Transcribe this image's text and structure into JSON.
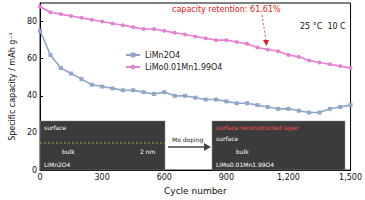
{
  "chart_data": {
    "type": "line",
    "x_label": "Cycle number",
    "y_label": "Specific capacity / mAh g⁻¹",
    "x": [
      0,
      50,
      100,
      150,
      200,
      250,
      300,
      350,
      400,
      450,
      500,
      550,
      600,
      650,
      700,
      750,
      800,
      850,
      900,
      950,
      1000,
      1050,
      1100,
      1150,
      1200,
      1250,
      1300,
      1350,
      1400,
      1450,
      1500
    ],
    "series": [
      {
        "name": "LiMn2O4",
        "color": "#8fa6c9",
        "marker": "square",
        "values": [
          75,
          62,
          55,
          52,
          49,
          46,
          45,
          44,
          43,
          43,
          42,
          41,
          42,
          40,
          40,
          39,
          38,
          38,
          37,
          36,
          36,
          35,
          34,
          33,
          33,
          32,
          31,
          31,
          33,
          34,
          35
        ]
      },
      {
        "name": "LiMo0.01Mn1.99O4",
        "color": "#e57fd2",
        "marker": "circle",
        "values": [
          88,
          85,
          84,
          83,
          82,
          81,
          80,
          79,
          78,
          77,
          76,
          76,
          75,
          74,
          73,
          72,
          71,
          70,
          70,
          69,
          68,
          66,
          65,
          64,
          62,
          61,
          59,
          58,
          57,
          56,
          55
        ]
      }
    ],
    "xlim": [
      0,
      1500
    ],
    "xticks": [
      0,
      300,
      600,
      900,
      1200,
      1500
    ],
    "ylim": [
      0,
      90
    ],
    "yticks": [
      0,
      20,
      40,
      60,
      80
    ],
    "grid": false,
    "legend": "upper center",
    "annotations": {
      "retention": "capacity retention: 61.61%",
      "conditions": "25 °C  10 C"
    },
    "insets": [
      {
        "title": "LiMn2O4",
        "labels": [
          "surface",
          "bulk",
          "2 nm"
        ]
      },
      {
        "title": "LiMo0.01Mn1.99O4",
        "labels": [
          "surface reconstructed layer",
          "surface",
          "bulk"
        ]
      }
    ],
    "inset_arrow": "Mo doping"
  }
}
